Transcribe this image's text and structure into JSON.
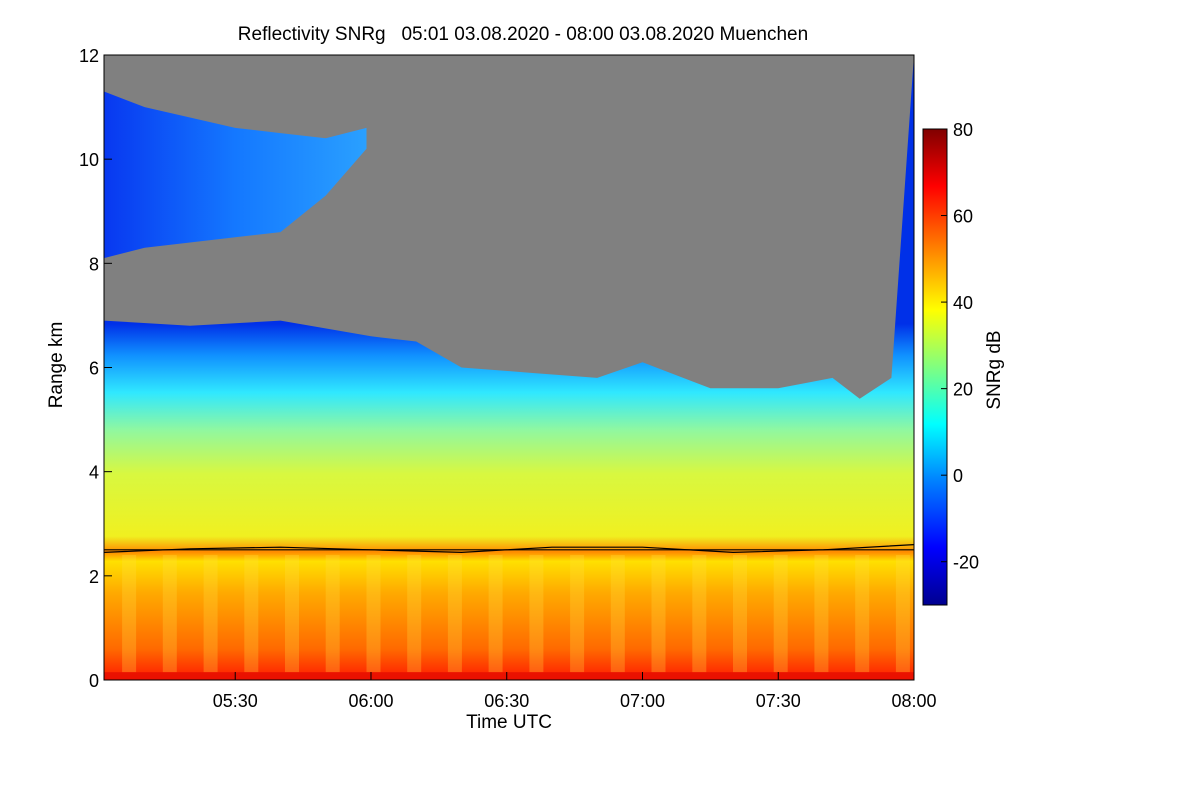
{
  "chart_data": {
    "type": "heatmap",
    "title": "Reflectivity SNRg   05:01 03.08.2020 - 08:00 03.08.2020 Muenchen",
    "xlabel": "Time UTC",
    "ylabel": "Range km",
    "colorbar_label": "SNRg dB",
    "x_range": [
      "05:01",
      "08:00"
    ],
    "xlim_minutes": [
      301,
      480
    ],
    "x_ticks": [
      {
        "minute": 330,
        "label": "05:30"
      },
      {
        "minute": 360,
        "label": "06:00"
      },
      {
        "minute": 390,
        "label": "06:30"
      },
      {
        "minute": 420,
        "label": "07:00"
      },
      {
        "minute": 450,
        "label": "07:30"
      },
      {
        "minute": 480,
        "label": "08:00"
      }
    ],
    "ylim": [
      0,
      12
    ],
    "y_ticks": [
      {
        "value": 0,
        "label": "0"
      },
      {
        "value": 2,
        "label": "2"
      },
      {
        "value": 4,
        "label": "4"
      },
      {
        "value": 6,
        "label": "6"
      },
      {
        "value": 8,
        "label": "8"
      },
      {
        "value": 10,
        "label": "10"
      },
      {
        "value": 12,
        "label": "12"
      }
    ],
    "colorbar_range": [
      -30,
      80
    ],
    "colorbar_ticks": [
      {
        "value": -20,
        "label": "-20"
      },
      {
        "value": 0,
        "label": "0"
      },
      {
        "value": 20,
        "label": "20"
      },
      {
        "value": 40,
        "label": "40"
      },
      {
        "value": 60,
        "label": "60"
      },
      {
        "value": 80,
        "label": "80"
      }
    ],
    "colormap": [
      "#00008f",
      "#0000ff",
      "#0080ff",
      "#00ffff",
      "#80ff80",
      "#ffff00",
      "#ff8000",
      "#ff0000",
      "#800000"
    ],
    "no_signal_color": "#808080",
    "cloud_top_km": [
      [
        301,
        6.9
      ],
      [
        320,
        6.8
      ],
      [
        340,
        6.9
      ],
      [
        360,
        6.6
      ],
      [
        370,
        6.5
      ],
      [
        380,
        6.0
      ],
      [
        395,
        5.9
      ],
      [
        410,
        5.8
      ],
      [
        420,
        6.1
      ],
      [
        435,
        5.6
      ],
      [
        450,
        5.6
      ],
      [
        462,
        5.8
      ],
      [
        468,
        5.4
      ],
      [
        475,
        5.8
      ],
      [
        480,
        12.0
      ]
    ],
    "upper_cloud_km": [
      [
        301,
        8.1,
        11.3
      ],
      [
        310,
        8.3,
        11.0
      ],
      [
        320,
        8.4,
        10.8
      ],
      [
        330,
        8.5,
        10.6
      ],
      [
        340,
        8.6,
        10.5
      ],
      [
        350,
        9.3,
        10.4
      ],
      [
        359,
        10.2,
        10.6
      ]
    ],
    "mixed_layer_height_km": [
      [
        301,
        2.45
      ],
      [
        320,
        2.52
      ],
      [
        340,
        2.55
      ],
      [
        360,
        2.5
      ],
      [
        380,
        2.45
      ],
      [
        400,
        2.55
      ],
      [
        420,
        2.55
      ],
      [
        440,
        2.45
      ],
      [
        460,
        2.5
      ],
      [
        480,
        2.6
      ]
    ],
    "reference_line_km": 2.5
  }
}
